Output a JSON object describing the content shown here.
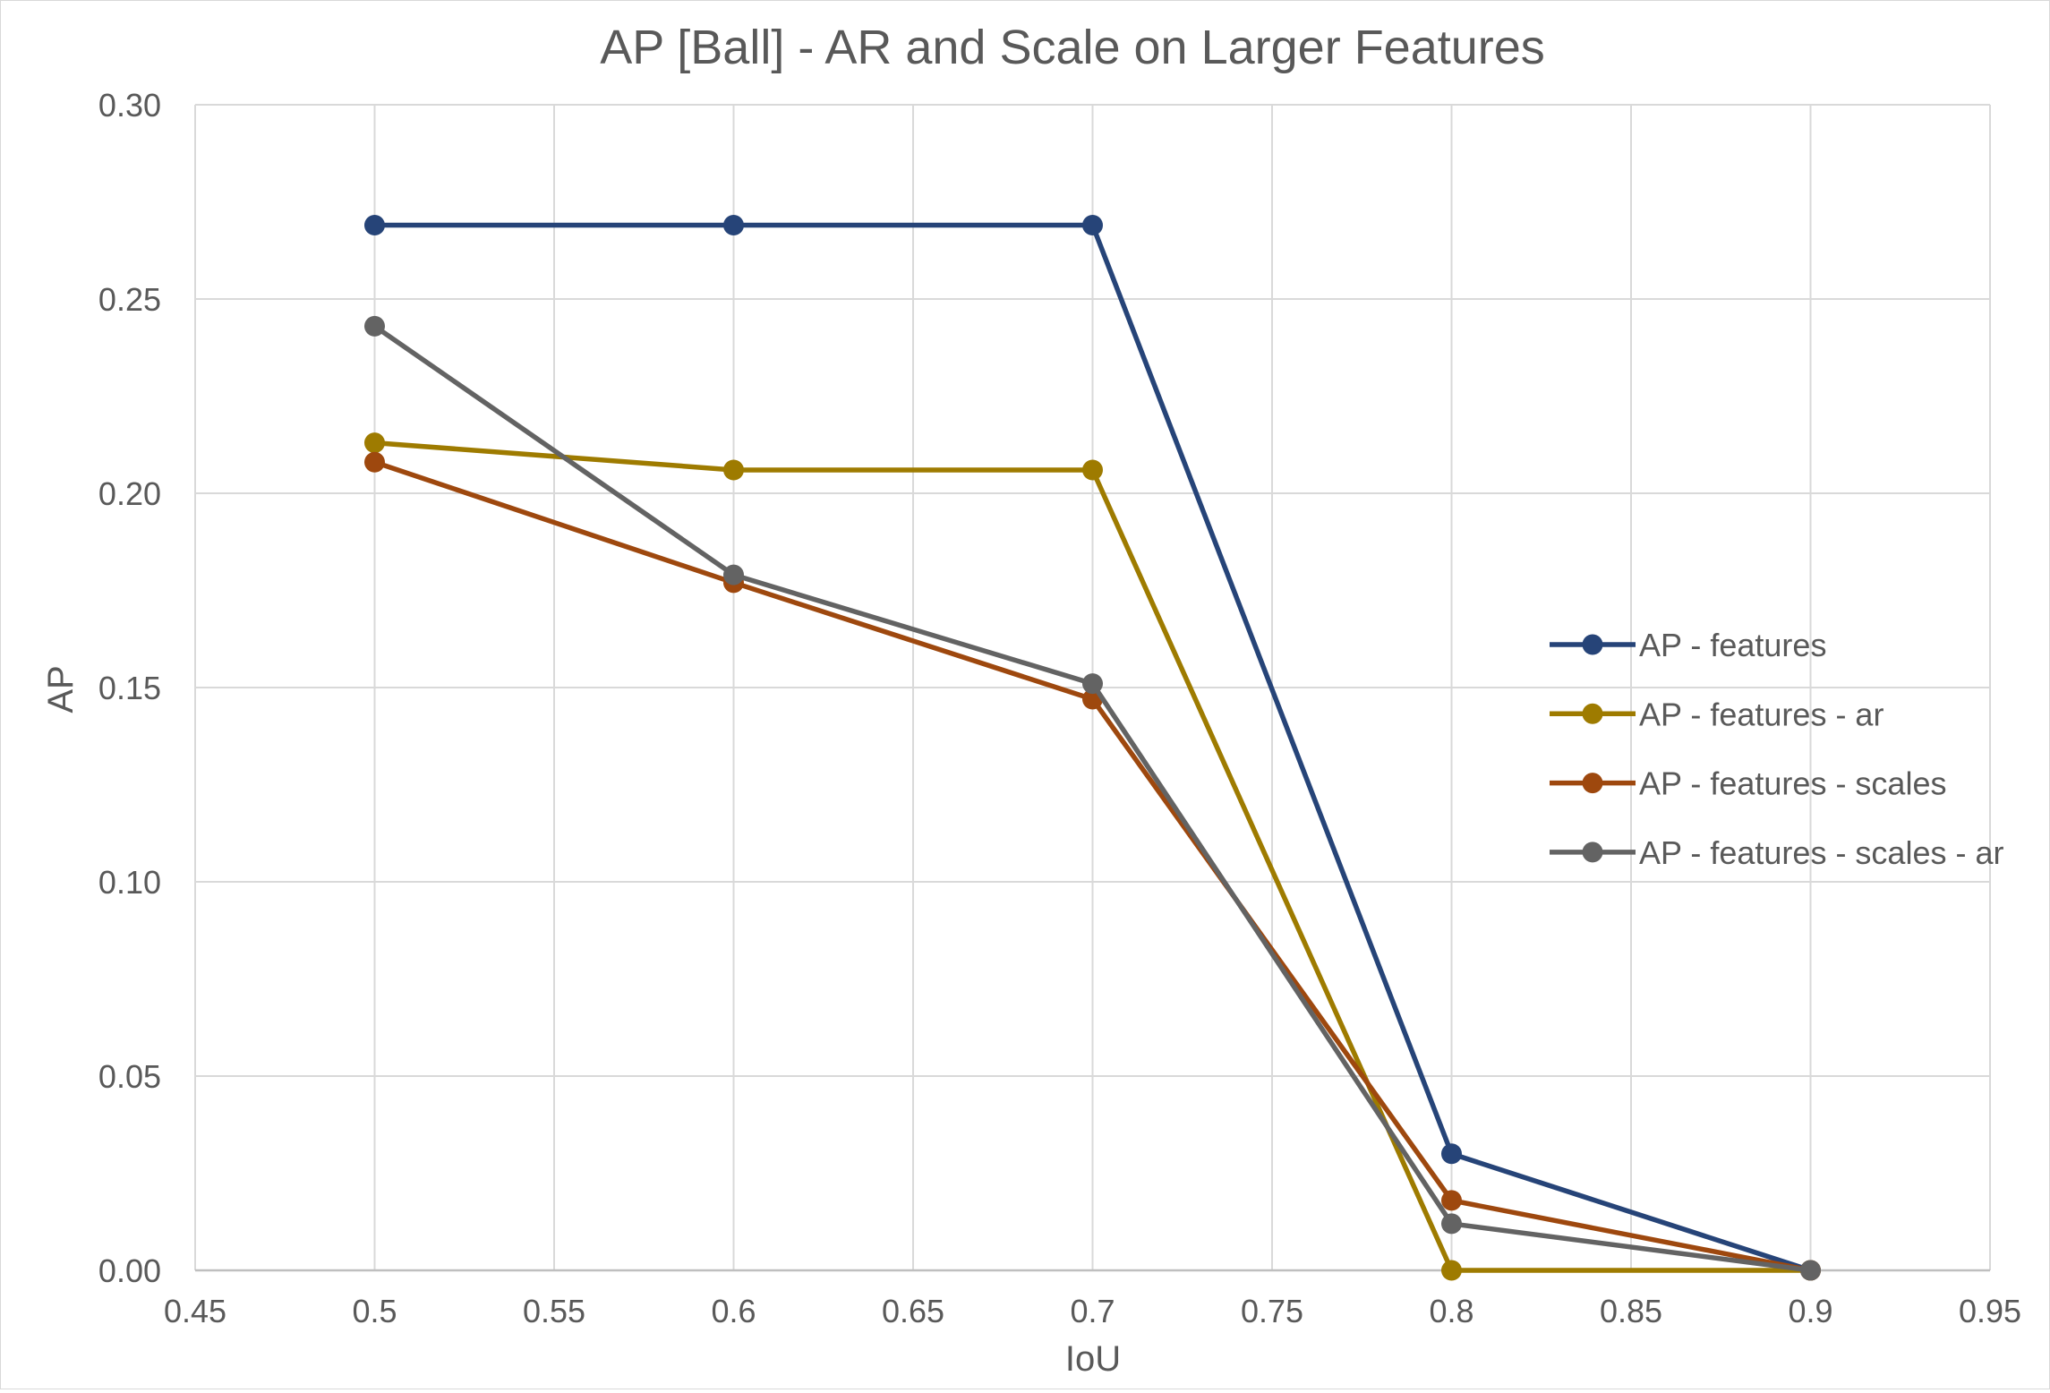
{
  "chart_data": {
    "type": "line",
    "title": "AP [Ball] - AR and Scale on Larger Features",
    "xlabel": "IoU",
    "ylabel": "AP",
    "xlim": [
      0.45,
      0.95
    ],
    "ylim": [
      0.0,
      0.3
    ],
    "x_ticks": [
      "0.45",
      "0.5",
      "0.55",
      "0.6",
      "0.65",
      "0.7",
      "0.75",
      "0.8",
      "0.85",
      "0.9",
      "0.95"
    ],
    "y_ticks": [
      "0.00",
      "0.05",
      "0.10",
      "0.15",
      "0.20",
      "0.25",
      "0.30"
    ],
    "grid": true,
    "legend_position": "right",
    "x": [
      0.5,
      0.6,
      0.7,
      0.8,
      0.9
    ],
    "series": [
      {
        "name": "AP - features",
        "color": "#264478",
        "values": [
          0.269,
          0.269,
          0.269,
          0.03,
          0.0
        ]
      },
      {
        "name": "AP - features - ar",
        "color": "#9E7B00",
        "values": [
          0.213,
          0.206,
          0.206,
          0.0,
          0.0
        ]
      },
      {
        "name": "AP - features - scales",
        "color": "#9E480E",
        "values": [
          0.208,
          0.177,
          0.147,
          0.018,
          0.0
        ]
      },
      {
        "name": "AP - features - scales - ar",
        "color": "#636363",
        "values": [
          0.243,
          0.179,
          0.151,
          0.012,
          0.0
        ]
      }
    ]
  }
}
